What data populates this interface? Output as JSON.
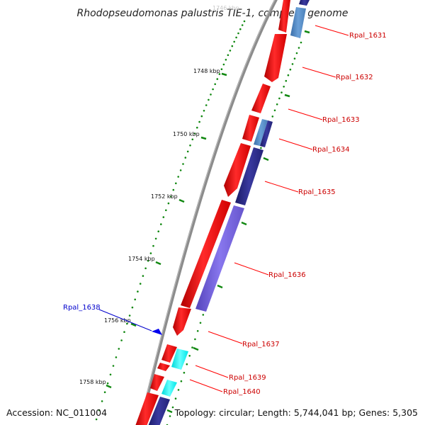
{
  "title": "Rhodopseudomonas palustris TIE-1, complete genome",
  "footer": {
    "accession": "Accession: NC_011004",
    "summary": "Topology: circular; Length: 5,744,041 bp; Genes: 5,305"
  },
  "colors": {
    "forward": "#ff0000",
    "reverse_blue": "#7766dd",
    "reverse_navy": "#2b2b8a",
    "reverse_steel": "#4f86be",
    "reverse_cyan": "#00ffff",
    "backbone": "#8c8c8c",
    "tick": "#118811",
    "label_red": "#cc0000",
    "label_blue": "#0000cc"
  },
  "scale_labels": [
    "1748 kbp",
    "1750 kbp",
    "1752 kbp",
    "1754 kbp",
    "1756 kbp",
    "1758 kbp"
  ],
  "scale_top_faded": "1746 kbp",
  "genes": [
    {
      "name": "Rpal_1631",
      "color": "label_red"
    },
    {
      "name": "Rpal_1632",
      "color": "label_red"
    },
    {
      "name": "Rpal_1633",
      "color": "label_red"
    },
    {
      "name": "Rpal_1634",
      "color": "label_red"
    },
    {
      "name": "Rpal_1635",
      "color": "label_red"
    },
    {
      "name": "Rpal_1636",
      "color": "label_red"
    },
    {
      "name": "Rpal_1637",
      "color": "label_red"
    },
    {
      "name": "Rpal_1638",
      "color": "label_blue"
    },
    {
      "name": "Rpal_1639",
      "color": "label_red"
    },
    {
      "name": "Rpal_1640",
      "color": "label_red"
    }
  ]
}
